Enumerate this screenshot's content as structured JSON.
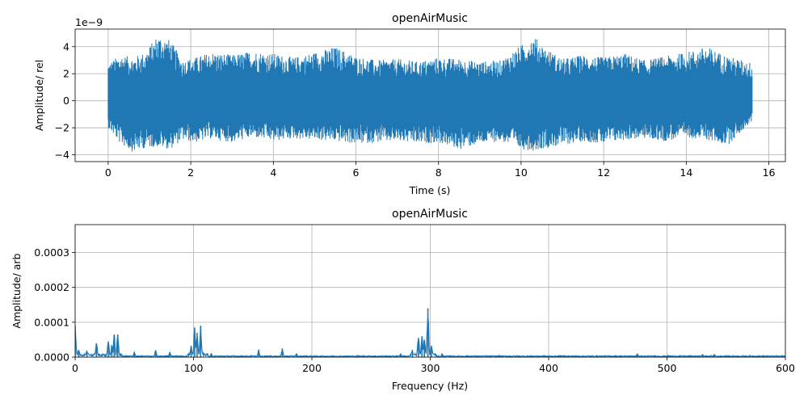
{
  "chart_data": [
    {
      "type": "line",
      "title": "openAirMusic",
      "xlabel": "Time (s)",
      "ylabel": "Amplitude/ rel",
      "y_offset_label": "1e−9",
      "xlim": [
        -0.8,
        16.4
      ],
      "ylim": [
        -4.5,
        5.3
      ],
      "x_ticks": [
        0,
        2,
        4,
        6,
        8,
        10,
        12,
        14,
        16
      ],
      "x_tick_labels": [
        "0",
        "2",
        "4",
        "6",
        "8",
        "10",
        "12",
        "14",
        "16"
      ],
      "y_ticks": [
        -4,
        -2,
        0,
        2,
        4
      ],
      "y_tick_labels": [
        "−4",
        "−2",
        "0",
        "2",
        "4"
      ],
      "grid": true,
      "color": "#1f77b4",
      "x_range": [
        0,
        15.6
      ],
      "envelope": {
        "t": [
          0,
          0.3,
          0.6,
          0.9,
          1.2,
          1.5,
          1.8,
          2.1,
          2.5,
          3.0,
          3.5,
          4.0,
          4.5,
          5.0,
          5.5,
          6.0,
          6.5,
          7.0,
          7.5,
          8.0,
          8.5,
          9.0,
          9.5,
          10.0,
          10.3,
          10.6,
          11.0,
          11.5,
          12.0,
          12.5,
          13.0,
          13.5,
          14.0,
          14.5,
          15.0,
          15.6
        ],
        "upper": [
          2.8,
          3.4,
          3.2,
          3.6,
          4.9,
          4.5,
          3.0,
          3.2,
          3.6,
          3.4,
          3.7,
          3.5,
          3.2,
          3.6,
          4.0,
          3.3,
          3.0,
          3.1,
          2.9,
          3.2,
          3.1,
          2.9,
          3.0,
          4.1,
          4.8,
          3.9,
          3.1,
          3.4,
          3.2,
          3.5,
          3.0,
          3.3,
          3.6,
          4.0,
          3.3,
          2.8
        ],
        "lower": [
          -2.0,
          -3.2,
          -3.8,
          -3.5,
          -3.4,
          -3.6,
          -2.9,
          -3.1,
          -2.8,
          -3.1,
          -2.7,
          -3.0,
          -2.8,
          -2.9,
          -3.0,
          -3.2,
          -3.1,
          -3.0,
          -3.2,
          -3.1,
          -3.6,
          -3.2,
          -3.0,
          -3.6,
          -3.7,
          -3.5,
          -3.3,
          -3.0,
          -3.2,
          -2.9,
          -2.8,
          -3.0,
          -2.7,
          -2.9,
          -3.3,
          -1.5
        ]
      }
    },
    {
      "type": "line",
      "title": "openAirMusic",
      "xlabel": "Frequency (Hz)",
      "ylabel": "Amplitude/ arb",
      "xlim": [
        0,
        600
      ],
      "ylim": [
        0,
        0.00038
      ],
      "x_ticks": [
        0,
        100,
        200,
        300,
        400,
        500,
        600
      ],
      "x_tick_labels": [
        "0",
        "100",
        "200",
        "300",
        "400",
        "500",
        "600"
      ],
      "y_ticks": [
        0,
        0.0001,
        0.0002,
        0.0003
      ],
      "y_tick_labels": [
        "0.0000",
        "0.0001",
        "0.0002",
        "0.0003"
      ],
      "grid": true,
      "color": "#1f77b4",
      "peaks": [
        {
          "f": 0,
          "a": 9e-05
        },
        {
          "f": 3,
          "a": 2e-05
        },
        {
          "f": 10,
          "a": 1.5e-05
        },
        {
          "f": 18,
          "a": 4e-05
        },
        {
          "f": 28,
          "a": 4.5e-05
        },
        {
          "f": 31,
          "a": 3e-05
        },
        {
          "f": 33,
          "a": 6.5e-05
        },
        {
          "f": 36,
          "a": 6.5e-05
        },
        {
          "f": 50,
          "a": 1.5e-05
        },
        {
          "f": 68,
          "a": 2e-05
        },
        {
          "f": 80,
          "a": 1.5e-05
        },
        {
          "f": 98,
          "a": 3e-05
        },
        {
          "f": 101,
          "a": 8.5e-05
        },
        {
          "f": 103,
          "a": 7e-05
        },
        {
          "f": 106,
          "a": 9e-05
        },
        {
          "f": 115,
          "a": 1e-05
        },
        {
          "f": 155,
          "a": 2e-05
        },
        {
          "f": 175,
          "a": 2.5e-05
        },
        {
          "f": 187,
          "a": 1e-05
        },
        {
          "f": 275,
          "a": 1e-05
        },
        {
          "f": 285,
          "a": 1.5e-05
        },
        {
          "f": 290,
          "a": 5.5e-05
        },
        {
          "f": 293,
          "a": 6e-05
        },
        {
          "f": 295,
          "a": 5e-05
        },
        {
          "f": 298,
          "a": 0.00014
        },
        {
          "f": 301,
          "a": 3e-05
        },
        {
          "f": 310,
          "a": 1e-05
        },
        {
          "f": 475,
          "a": 1e-05
        },
        {
          "f": 530,
          "a": 8e-06
        },
        {
          "f": 540,
          "a": 8e-06
        }
      ]
    }
  ]
}
